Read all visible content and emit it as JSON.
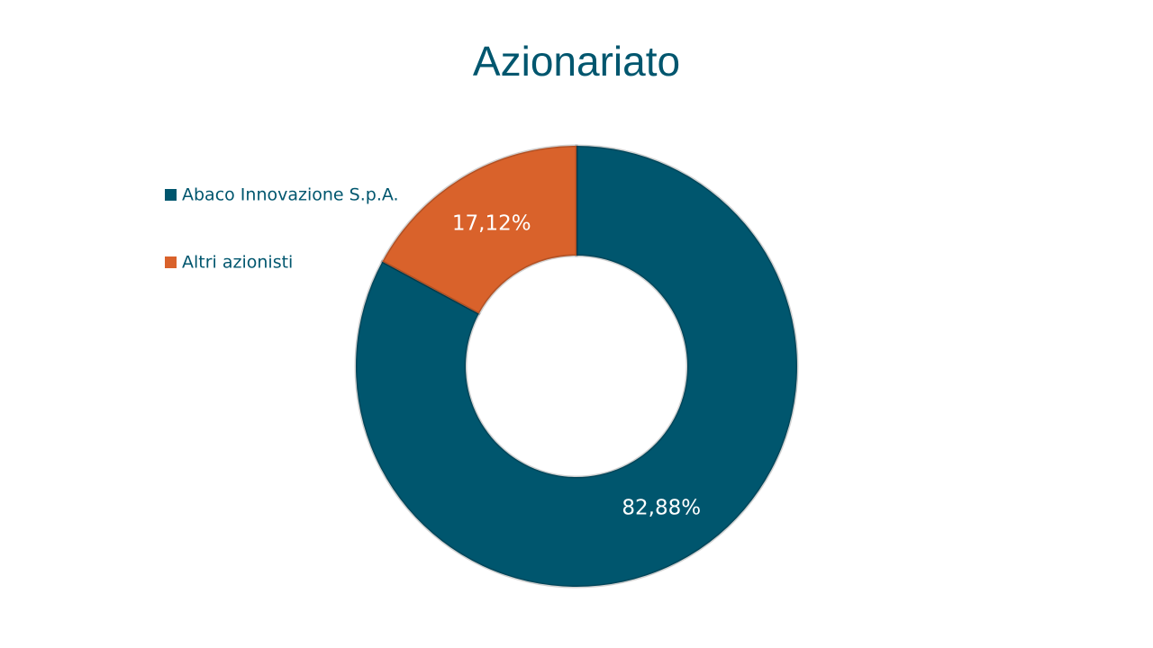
{
  "chart_data": {
    "type": "donut",
    "title": "Azionariato",
    "categories": [
      "Abaco Innovazione S.p.A.",
      "Altri azionisti"
    ],
    "values": [
      82.88,
      17.12
    ],
    "value_labels": [
      "82,88%",
      "17,12%"
    ],
    "colors": [
      "#00566e",
      "#d9622b"
    ],
    "legend": "left"
  }
}
